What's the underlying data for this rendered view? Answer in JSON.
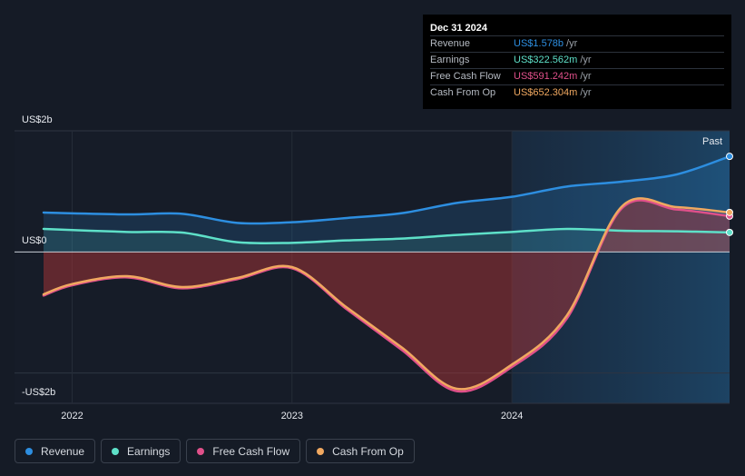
{
  "tooltip": {
    "date": "Dec 31 2024",
    "rows": [
      {
        "label": "Revenue",
        "value": "US$1.578b",
        "unit": "/yr",
        "color": "#2d8ee0"
      },
      {
        "label": "Earnings",
        "value": "US$322.562m",
        "unit": "/yr",
        "color": "#5ee0c8"
      },
      {
        "label": "Free Cash Flow",
        "value": "US$591.242m",
        "unit": "/yr",
        "color": "#e0508a"
      },
      {
        "label": "Cash From Op",
        "value": "US$652.304m",
        "unit": "/yr",
        "color": "#f0a860"
      }
    ]
  },
  "past_label": "Past",
  "legend": [
    {
      "label": "Revenue",
      "color": "#2d8ee0"
    },
    {
      "label": "Earnings",
      "color": "#5ee0c8"
    },
    {
      "label": "Free Cash Flow",
      "color": "#e0508a"
    },
    {
      "label": "Cash From Op",
      "color": "#f0a860"
    }
  ],
  "chart_data": {
    "type": "line",
    "ylabels": {
      "top": "US$2b",
      "zero": "US$0",
      "bottom": "-US$2b"
    },
    "xticks": [
      {
        "label": "2022",
        "x": 2022.0
      },
      {
        "label": "2023",
        "x": 2023.0
      },
      {
        "label": "2024",
        "x": 2024.0
      }
    ],
    "xlim": [
      2021.87,
      2024.99
    ],
    "ylim": [
      -2.5,
      2.0
    ],
    "past_start": 2024.0,
    "series": [
      {
        "name": "Revenue",
        "color": "#2d8ee0",
        "points": [
          [
            2021.87,
            0.65
          ],
          [
            2022.25,
            0.62
          ],
          [
            2022.5,
            0.63
          ],
          [
            2022.75,
            0.48
          ],
          [
            2023.0,
            0.49
          ],
          [
            2023.25,
            0.56
          ],
          [
            2023.5,
            0.64
          ],
          [
            2023.75,
            0.81
          ],
          [
            2024.0,
            0.91
          ],
          [
            2024.25,
            1.08
          ],
          [
            2024.5,
            1.16
          ],
          [
            2024.75,
            1.28
          ],
          [
            2024.99,
            1.578
          ]
        ]
      },
      {
        "name": "Earnings",
        "color": "#5ee0c8",
        "points": [
          [
            2021.87,
            0.38
          ],
          [
            2022.25,
            0.33
          ],
          [
            2022.5,
            0.32
          ],
          [
            2022.75,
            0.16
          ],
          [
            2023.0,
            0.15
          ],
          [
            2023.25,
            0.19
          ],
          [
            2023.5,
            0.22
          ],
          [
            2023.75,
            0.28
          ],
          [
            2024.0,
            0.33
          ],
          [
            2024.25,
            0.38
          ],
          [
            2024.5,
            0.35
          ],
          [
            2024.75,
            0.34
          ],
          [
            2024.99,
            0.322562
          ]
        ]
      },
      {
        "name": "Free Cash Flow",
        "color": "#e0508a",
        "points": [
          [
            2021.87,
            -0.72
          ],
          [
            2022.0,
            -0.55
          ],
          [
            2022.25,
            -0.42
          ],
          [
            2022.5,
            -0.6
          ],
          [
            2022.75,
            -0.45
          ],
          [
            2023.0,
            -0.27
          ],
          [
            2023.25,
            -0.95
          ],
          [
            2023.5,
            -1.62
          ],
          [
            2023.75,
            -2.3
          ],
          [
            2024.0,
            -1.9
          ],
          [
            2024.25,
            -1.1
          ],
          [
            2024.5,
            0.72
          ],
          [
            2024.75,
            0.7
          ],
          [
            2024.99,
            0.591242
          ]
        ]
      },
      {
        "name": "Cash From Op",
        "color": "#f0a860",
        "points": [
          [
            2021.87,
            -0.7
          ],
          [
            2022.0,
            -0.53
          ],
          [
            2022.25,
            -0.4
          ],
          [
            2022.5,
            -0.58
          ],
          [
            2022.75,
            -0.43
          ],
          [
            2023.0,
            -0.25
          ],
          [
            2023.25,
            -0.92
          ],
          [
            2023.5,
            -1.58
          ],
          [
            2023.75,
            -2.26
          ],
          [
            2024.0,
            -1.86
          ],
          [
            2024.25,
            -1.05
          ],
          [
            2024.5,
            0.75
          ],
          [
            2024.75,
            0.74
          ],
          [
            2024.99,
            0.652304
          ]
        ]
      }
    ]
  }
}
